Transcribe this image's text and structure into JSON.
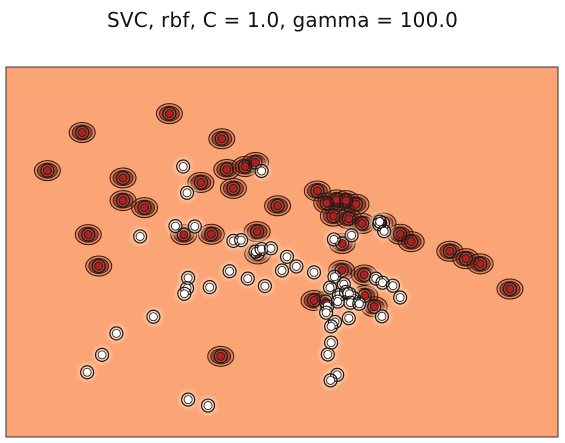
{
  "chart_data": {
    "type": "scatter",
    "title": "SVC, rbf, C = 1.0, gamma = 100.0",
    "xlabel": "",
    "ylabel": "",
    "xlim": [
      0,
      1
    ],
    "ylim": [
      0,
      1
    ],
    "axis_ticks": false,
    "grid": false,
    "background_color": "#fba476",
    "frame_color": "#333333",
    "series": [
      {
        "class": 1,
        "fill": "#b11f1f",
        "points": [
          [
            0.296,
            0.874
          ],
          [
            0.138,
            0.823
          ],
          [
            0.391,
            0.806
          ],
          [
            0.075,
            0.72
          ],
          [
            0.212,
            0.7
          ],
          [
            0.4,
            0.723
          ],
          [
            0.433,
            0.731
          ],
          [
            0.452,
            0.742
          ],
          [
            0.353,
            0.688
          ],
          [
            0.412,
            0.672
          ],
          [
            0.212,
            0.639
          ],
          [
            0.251,
            0.62
          ],
          [
            0.149,
            0.547
          ],
          [
            0.322,
            0.547
          ],
          [
            0.372,
            0.548
          ],
          [
            0.492,
            0.625
          ],
          [
            0.564,
            0.665
          ],
          [
            0.581,
            0.632
          ],
          [
            0.599,
            0.641
          ],
          [
            0.616,
            0.639
          ],
          [
            0.634,
            0.629
          ],
          [
            0.593,
            0.597
          ],
          [
            0.621,
            0.59
          ],
          [
            0.645,
            0.577
          ],
          [
            0.683,
            0.578
          ],
          [
            0.714,
            0.548
          ],
          [
            0.734,
            0.528
          ],
          [
            0.609,
            0.523
          ],
          [
            0.456,
            0.495
          ],
          [
            0.608,
            0.45
          ],
          [
            0.804,
            0.502
          ],
          [
            0.833,
            0.482
          ],
          [
            0.859,
            0.468
          ],
          [
            0.913,
            0.4
          ],
          [
            0.168,
            0.462
          ],
          [
            0.558,
            0.369
          ],
          [
            0.579,
            0.366
          ],
          [
            0.65,
            0.382
          ],
          [
            0.667,
            0.352
          ],
          [
            0.389,
            0.218
          ],
          [
            0.455,
            0.555
          ],
          [
            0.649,
            0.438
          ]
        ]
      },
      {
        "class": 0,
        "fill": "#ffffff",
        "points": [
          [
            0.463,
            0.719
          ],
          [
            0.328,
            0.66
          ],
          [
            0.307,
            0.57
          ],
          [
            0.342,
            0.569
          ],
          [
            0.243,
            0.542
          ],
          [
            0.412,
            0.53
          ],
          [
            0.426,
            0.532
          ],
          [
            0.452,
            0.501
          ],
          [
            0.463,
            0.508
          ],
          [
            0.48,
            0.51
          ],
          [
            0.509,
            0.487
          ],
          [
            0.526,
            0.461
          ],
          [
            0.5,
            0.45
          ],
          [
            0.405,
            0.448
          ],
          [
            0.438,
            0.428
          ],
          [
            0.469,
            0.408
          ],
          [
            0.558,
            0.445
          ],
          [
            0.594,
            0.534
          ],
          [
            0.626,
            0.545
          ],
          [
            0.676,
            0.575
          ],
          [
            0.685,
            0.556
          ],
          [
            0.677,
            0.582
          ],
          [
            0.595,
            0.433
          ],
          [
            0.612,
            0.413
          ],
          [
            0.67,
            0.428
          ],
          [
            0.682,
            0.417
          ],
          [
            0.33,
            0.43
          ],
          [
            0.328,
            0.402
          ],
          [
            0.323,
            0.387
          ],
          [
            0.369,
            0.405
          ],
          [
            0.587,
            0.404
          ],
          [
            0.603,
            0.384
          ],
          [
            0.616,
            0.392
          ],
          [
            0.63,
            0.375
          ],
          [
            0.582,
            0.354
          ],
          [
            0.58,
            0.336
          ],
          [
            0.601,
            0.366
          ],
          [
            0.596,
            0.311
          ],
          [
            0.622,
            0.387
          ],
          [
            0.624,
            0.363
          ],
          [
            0.64,
            0.36
          ],
          [
            0.589,
            0.299
          ],
          [
            0.621,
            0.321
          ],
          [
            0.701,
            0.409
          ],
          [
            0.714,
            0.377
          ],
          [
            0.681,
            0.326
          ],
          [
            0.267,
            0.325
          ],
          [
            0.2,
            0.28
          ],
          [
            0.174,
            0.222
          ],
          [
            0.147,
            0.175
          ],
          [
            0.583,
            0.223
          ],
          [
            0.6,
            0.168
          ],
          [
            0.588,
            0.153
          ],
          [
            0.33,
            0.101
          ],
          [
            0.366,
            0.085
          ],
          [
            0.321,
            0.731
          ],
          [
            0.589,
            0.255
          ]
        ]
      }
    ]
  }
}
